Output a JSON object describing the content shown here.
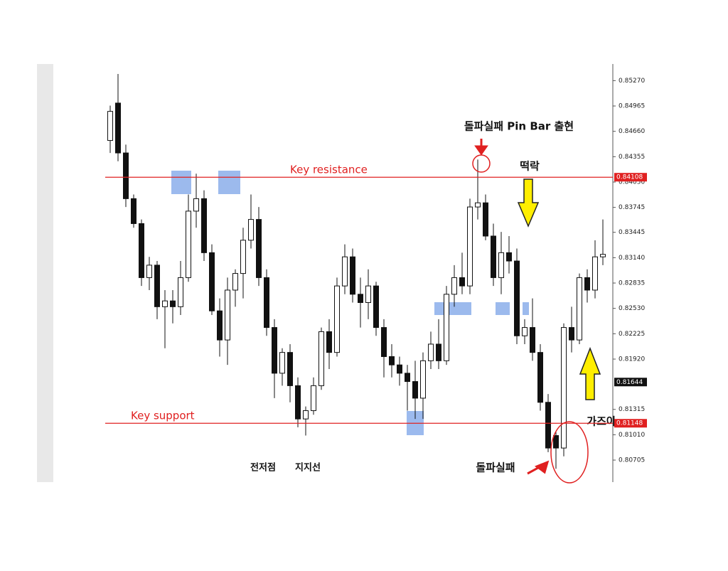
{
  "chart_data": {
    "type": "candlestick",
    "open": [
      0.8455,
      0.85,
      0.844,
      0.8385,
      0.8355,
      0.829,
      0.8305,
      0.8255,
      0.8262,
      0.8255,
      0.829,
      0.837,
      0.8385,
      0.832,
      0.825,
      0.8215,
      0.8275,
      0.8295,
      0.8335,
      0.836,
      0.829,
      0.823,
      0.8175,
      0.82,
      0.816,
      0.812,
      0.813,
      0.816,
      0.8225,
      0.82,
      0.828,
      0.8315,
      0.827,
      0.826,
      0.828,
      0.823,
      0.8195,
      0.8185,
      0.8175,
      0.8165,
      0.8145,
      0.819,
      0.821,
      0.819,
      0.827,
      0.829,
      0.828,
      0.8375,
      0.838,
      0.834,
      0.829,
      0.832,
      0.831,
      0.822,
      0.823,
      0.82,
      0.814,
      0.81,
      0.8085,
      0.823,
      0.8215,
      0.829,
      0.8275,
      0.8315
    ],
    "high": [
      0.8497,
      0.8535,
      0.845,
      0.839,
      0.836,
      0.8315,
      0.831,
      0.8275,
      0.8275,
      0.831,
      0.839,
      0.8415,
      0.8395,
      0.833,
      0.8265,
      0.829,
      0.83,
      0.835,
      0.839,
      0.8375,
      0.83,
      0.824,
      0.8205,
      0.821,
      0.817,
      0.8135,
      0.817,
      0.823,
      0.824,
      0.829,
      0.833,
      0.8325,
      0.829,
      0.83,
      0.8285,
      0.824,
      0.821,
      0.8195,
      0.8185,
      0.819,
      0.82,
      0.8225,
      0.824,
      0.828,
      0.8305,
      0.832,
      0.8385,
      0.8432,
      0.839,
      0.8355,
      0.8345,
      0.834,
      0.8325,
      0.824,
      0.8265,
      0.821,
      0.815,
      0.8105,
      0.8235,
      0.8255,
      0.8295,
      0.83,
      0.8335,
      0.836
    ],
    "low": [
      0.844,
      0.843,
      0.8375,
      0.835,
      0.828,
      0.8275,
      0.824,
      0.8205,
      0.8235,
      0.8245,
      0.8285,
      0.835,
      0.831,
      0.8245,
      0.8195,
      0.8185,
      0.8255,
      0.8265,
      0.8325,
      0.828,
      0.822,
      0.8145,
      0.816,
      0.814,
      0.811,
      0.81,
      0.8125,
      0.8155,
      0.818,
      0.8195,
      0.827,
      0.826,
      0.823,
      0.824,
      0.822,
      0.817,
      0.817,
      0.816,
      0.813,
      0.812,
      0.812,
      0.818,
      0.818,
      0.8185,
      0.8255,
      0.827,
      0.827,
      0.836,
      0.8335,
      0.828,
      0.827,
      0.8295,
      0.821,
      0.821,
      0.819,
      0.813,
      0.808,
      0.806,
      0.8075,
      0.82,
      0.821,
      0.826,
      0.8265,
      0.8305
    ],
    "close": [
      0.849,
      0.844,
      0.8385,
      0.8355,
      0.829,
      0.8305,
      0.8255,
      0.8262,
      0.8255,
      0.829,
      0.837,
      0.8385,
      0.832,
      0.825,
      0.8215,
      0.8275,
      0.8295,
      0.8335,
      0.836,
      0.829,
      0.823,
      0.8175,
      0.82,
      0.816,
      0.812,
      0.813,
      0.816,
      0.8225,
      0.82,
      0.828,
      0.8315,
      0.827,
      0.826,
      0.828,
      0.823,
      0.8195,
      0.8185,
      0.8175,
      0.8165,
      0.8145,
      0.819,
      0.821,
      0.819,
      0.827,
      0.829,
      0.828,
      0.8375,
      0.838,
      0.834,
      0.829,
      0.832,
      0.831,
      0.822,
      0.823,
      0.82,
      0.814,
      0.8085,
      0.8085,
      0.823,
      0.8215,
      0.829,
      0.8275,
      0.8315,
      0.8318
    ],
    "ylim": [
      0.8044,
      0.8547
    ],
    "yticks": [
      {
        "value": 0.8527,
        "label": "0.85270"
      },
      {
        "value": 0.84965,
        "label": "0.84965"
      },
      {
        "value": 0.8466,
        "label": "0.84660"
      },
      {
        "value": 0.84355,
        "label": "0.84355"
      },
      {
        "value": 0.8405,
        "label": "0.84050"
      },
      {
        "value": 0.83745,
        "label": "0.83745"
      },
      {
        "value": 0.83445,
        "label": "0.83445"
      },
      {
        "value": 0.8314,
        "label": "0.83140"
      },
      {
        "value": 0.82835,
        "label": "0.82835"
      },
      {
        "value": 0.8253,
        "label": "0.82530"
      },
      {
        "value": 0.82225,
        "label": "0.82225"
      },
      {
        "value": 0.8192,
        "label": "0.81920"
      },
      {
        "value": 0.81315,
        "label": "0.81315"
      },
      {
        "value": 0.8101,
        "label": "0.81010"
      },
      {
        "value": 0.80705,
        "label": "0.80705"
      }
    ],
    "levels": [
      {
        "name": "Key resistance",
        "value": 0.84108,
        "label": "0.84108",
        "color": "#e02020"
      },
      {
        "name": "Key support",
        "value": 0.81148,
        "label": "0.81148",
        "color": "#e02020"
      }
    ],
    "current_price": {
      "value": 0.81644,
      "label": "0.81644"
    },
    "annotations": [
      "돌파실패 Pin Bar 출현",
      "떡락",
      "가즈아",
      "돌파실패",
      "전저점",
      "지지선"
    ]
  }
}
